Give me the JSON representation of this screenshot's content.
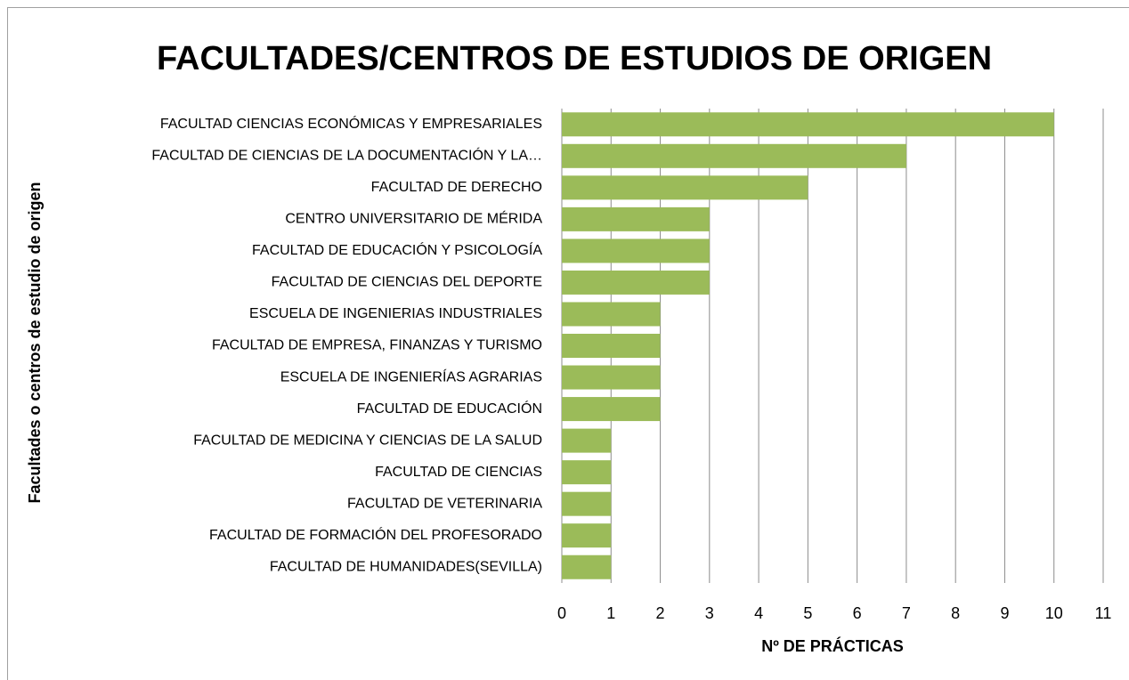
{
  "chart_data": {
    "type": "barh",
    "title": "FACULTADES/CENTROS DE ESTUDIOS DE ORIGEN",
    "xlabel": "Nº DE PRÁCTICAS",
    "ylabel": "Facultades o centros de estudio de origen",
    "categories": [
      "FACULTAD CIENCIAS ECONÓMICAS Y EMPRESARIALES",
      "FACULTAD DE CIENCIAS DE LA DOCUMENTACIÓN Y LA…",
      "FACULTAD DE DERECHO",
      "CENTRO UNIVERSITARIO DE MÉRIDA",
      "FACULTAD DE EDUCACIÓN Y PSICOLOGÍA",
      "FACULTAD DE CIENCIAS DEL DEPORTE",
      "ESCUELA DE INGENIERIAS INDUSTRIALES",
      "FACULTAD DE EMPRESA, FINANZAS Y TURISMO",
      "ESCUELA DE INGENIERÍAS AGRARIAS",
      "FACULTAD DE EDUCACIÓN",
      "FACULTAD DE MEDICINA Y CIENCIAS DE LA SALUD",
      "FACULTAD DE CIENCIAS",
      "FACULTAD DE VETERINARIA",
      "FACULTAD DE FORMACIÓN DEL PROFESORADO",
      "FACULTAD DE HUMANIDADES(SEVILLA)"
    ],
    "values": [
      10,
      7,
      5,
      3,
      3,
      3,
      2,
      2,
      2,
      2,
      1,
      1,
      1,
      1,
      1
    ],
    "color": "#9bbb59",
    "xlim": [
      0,
      11
    ],
    "xticks": [
      0,
      1,
      2,
      3,
      4,
      5,
      6,
      7,
      8,
      9,
      10,
      11
    ],
    "grid": true
  }
}
